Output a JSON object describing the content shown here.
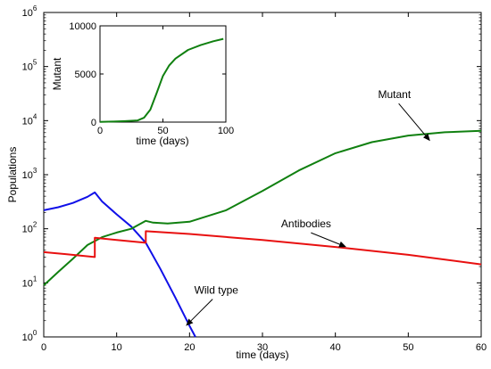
{
  "chart_data": [
    {
      "type": "line",
      "xlabel": "time (days)",
      "ylabel": "Populations",
      "xlim": [
        0,
        60
      ],
      "ylim": [
        1,
        1000000
      ],
      "yscale": "log",
      "grid": false,
      "xticks": [
        "0",
        "10",
        "20",
        "30",
        "40",
        "50",
        "60"
      ],
      "ytick_exponents": [
        "0",
        "1",
        "2",
        "3",
        "4",
        "5",
        "6"
      ],
      "ytick_base": "10",
      "series": [
        {
          "name": "Wild type",
          "color": "#1010e8",
          "x": [
            0,
            2,
            4,
            6,
            7,
            8,
            10,
            12,
            14,
            16,
            18,
            20,
            20.8
          ],
          "y": [
            220,
            250,
            300,
            390,
            470,
            320,
            185,
            110,
            55,
            18,
            5.5,
            1.6,
            1.0
          ]
        },
        {
          "name": "Mutant",
          "color": "#108010",
          "x": [
            0,
            2,
            4,
            6,
            8,
            10,
            12,
            14,
            15,
            17,
            20,
            25,
            30,
            35,
            40,
            45,
            50,
            55,
            60
          ],
          "y": [
            9,
            16,
            28,
            50,
            70,
            85,
            100,
            140,
            130,
            125,
            135,
            220,
            500,
            1200,
            2500,
            4000,
            5300,
            6100,
            6500
          ]
        },
        {
          "name": "Antibodies",
          "color": "#e81010",
          "x": [
            0,
            3,
            7,
            7,
            10,
            14,
            14,
            20,
            30,
            40,
            50,
            60
          ],
          "y": [
            37,
            34,
            30,
            68,
            62,
            55,
            90,
            80,
            62,
            46,
            33,
            22
          ]
        }
      ],
      "annotations": [
        {
          "text": "Mutant",
          "arrow_to": [
            53,
            4200
          ]
        },
        {
          "text": "Antibodies",
          "arrow_to": [
            41.5,
            46
          ]
        },
        {
          "text": "Wild type",
          "arrow_to": [
            19.5,
            1.6
          ]
        }
      ]
    },
    {
      "type": "line",
      "xlabel": "time (days)",
      "ylabel": "Mutant",
      "xlim": [
        0,
        100
      ],
      "ylim": [
        0,
        10000
      ],
      "xticks": [
        "0",
        "50",
        "100"
      ],
      "yticks": [
        "0",
        "5000",
        "10000"
      ],
      "series": [
        {
          "color": "#108010",
          "x": [
            0,
            10,
            20,
            30,
            35,
            40,
            45,
            50,
            55,
            60,
            70,
            80,
            90,
            98
          ],
          "y": [
            20,
            60,
            100,
            180,
            450,
            1300,
            3000,
            4800,
            5900,
            6600,
            7500,
            8000,
            8400,
            8650
          ]
        }
      ]
    }
  ]
}
